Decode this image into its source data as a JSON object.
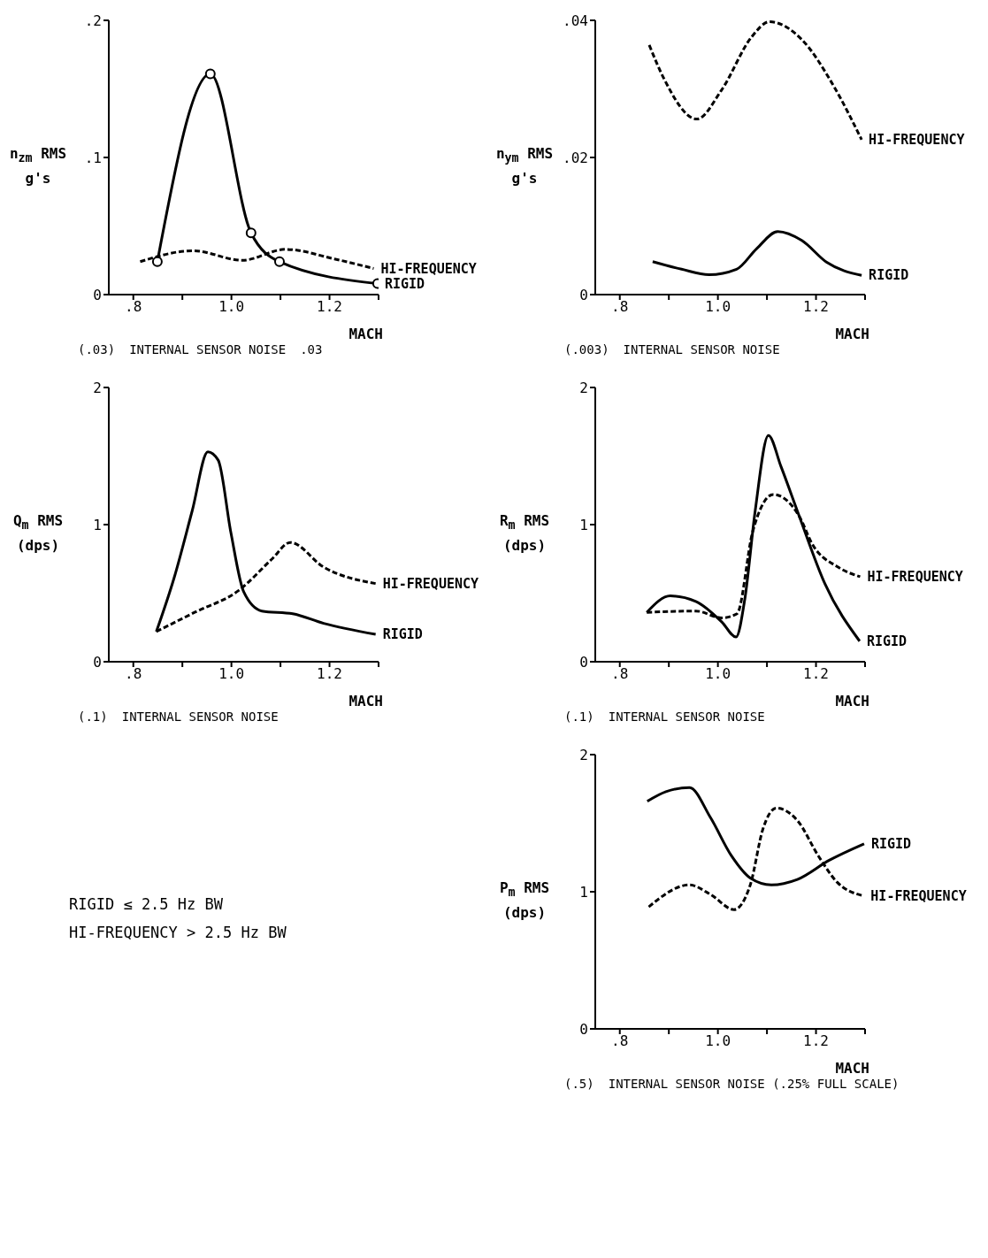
{
  "chart_data": [
    {
      "type": "line",
      "xlabel": "MACH",
      "ylabel": "n$_{zm}$ RMS g's",
      "xlim": [
        0.75,
        1.3
      ],
      "ylim": [
        0,
        0.2
      ],
      "xticks": [
        {
          "value": 0.8,
          "label": ".8"
        },
        {
          "value": 0.9,
          "label": null
        },
        {
          "value": 1.0,
          "label": "1.0"
        },
        {
          "value": 1.1,
          "label": null
        },
        {
          "value": 1.2,
          "label": "1.2"
        },
        {
          "value": 1.3,
          "label": null
        }
      ],
      "yticks": [
        0,
        {
          "value": 0.1,
          "label": ".1"
        },
        {
          "value": 0.2,
          "label": ".2"
        }
      ],
      "series": [
        {
          "name": "RIGID",
          "color": "#000000",
          "line_style": "solid",
          "marker": "circle",
          "x": [
            0.849,
            0.957,
            1.04,
            1.098,
            1.298
          ],
          "values": [
            0.024,
            0.161,
            0.045,
            0.024,
            0.008
          ]
        },
        {
          "name": "HI-FREQUENCY",
          "color": "#000000",
          "line_style": "dashed",
          "marker": "none",
          "x": [
            0.814,
            0.922,
            1.022,
            1.11,
            1.21,
            1.29
          ],
          "values": [
            0.024,
            0.032,
            0.025,
            0.033,
            0.026,
            0.019
          ]
        }
      ],
      "annotations": [
        "(.03)",
        "INTERNAL SENSOR NOISE",
        ".03"
      ]
    },
    {
      "type": "line",
      "xlabel": "MACH",
      "ylabel": "n$_{ym}$ RMS g's",
      "xlim": [
        0.75,
        1.3
      ],
      "ylim": [
        0,
        0.04
      ],
      "xticks": [
        {
          "value": 0.8,
          "label": ".8"
        },
        {
          "value": 0.9,
          "label": null
        },
        {
          "value": 1.0,
          "label": "1.0"
        },
        {
          "value": 1.1,
          "label": null
        },
        {
          "value": 1.2,
          "label": "1.2"
        },
        {
          "value": 1.3,
          "label": null
        }
      ],
      "yticks": [
        0,
        {
          "value": 0.02,
          "label": ".02"
        },
        {
          "value": 0.04,
          "label": ".04"
        }
      ],
      "series": [
        {
          "name": "HI-FREQUENCY",
          "color": "#000000",
          "line_style": "dashed",
          "marker": "none",
          "x": [
            0.86,
            0.89,
            0.957,
            1.008,
            1.069,
            1.105,
            1.171,
            1.237,
            1.293
          ],
          "values": [
            0.0364,
            0.0315,
            0.0256,
            0.0299,
            0.0376,
            0.0398,
            0.0372,
            0.0303,
            0.0226
          ]
        },
        {
          "name": "RIGID",
          "color": "#000000",
          "line_style": "solid",
          "marker": "none",
          "x": [
            0.867,
            0.926,
            0.982,
            1.038,
            1.079,
            1.122,
            1.171,
            1.222,
            1.293
          ],
          "values": [
            0.0048,
            0.0037,
            0.0029,
            0.0037,
            0.0067,
            0.0092,
            0.0079,
            0.0047,
            0.0028
          ]
        }
      ],
      "annotations": [
        "(.003)",
        "INTERNAL SENSOR NOISE"
      ]
    },
    {
      "type": "line",
      "xlabel": "MACH",
      "ylabel": "Q$_{m}$ RMS (dps)",
      "xlim": [
        0.75,
        1.3
      ],
      "ylim": [
        0,
        2
      ],
      "xticks": [
        {
          "value": 0.8,
          "label": ".8"
        },
        {
          "value": 0.9,
          "label": null
        },
        {
          "value": 1.0,
          "label": "1.0"
        },
        {
          "value": 1.1,
          "label": null
        },
        {
          "value": 1.2,
          "label": "1.2"
        },
        {
          "value": 1.3,
          "label": null
        }
      ],
      "yticks": [
        0,
        1,
        2
      ],
      "series": [
        {
          "name": "RIGID",
          "color": "#000000",
          "line_style": "solid",
          "marker": "none",
          "x": [
            0.847,
            0.883,
            0.92,
            0.952,
            0.973,
            0.999,
            1.025,
            1.062,
            1.125,
            1.188,
            1.294
          ],
          "values": [
            0.22,
            0.61,
            1.1,
            1.53,
            1.47,
            0.94,
            0.51,
            0.37,
            0.35,
            0.28,
            0.2
          ]
        },
        {
          "name": "HI-FREQUENCY",
          "color": "#000000",
          "line_style": "dashed",
          "marker": "none",
          "x": [
            0.847,
            0.925,
            1.015,
            1.083,
            1.12,
            1.188,
            1.294
          ],
          "values": [
            0.22,
            0.36,
            0.52,
            0.75,
            0.87,
            0.69,
            0.57
          ]
        }
      ],
      "annotations": [
        "(.1)",
        "INTERNAL SENSOR NOISE"
      ]
    },
    {
      "type": "line",
      "xlabel": "MACH",
      "ylabel": "R$_{m}$ RMS (dps)",
      "xlim": [
        0.75,
        1.3
      ],
      "ylim": [
        0,
        2
      ],
      "xticks": [
        {
          "value": 0.8,
          "label": ".8"
        },
        {
          "value": 0.9,
          "label": null
        },
        {
          "value": 1.0,
          "label": "1.0"
        },
        {
          "value": 1.1,
          "label": null
        },
        {
          "value": 1.2,
          "label": "1.2"
        },
        {
          "value": 1.3,
          "label": null
        }
      ],
      "yticks": [
        0,
        1,
        2
      ],
      "series": [
        {
          "name": "RIGID",
          "color": "#000000",
          "line_style": "solid",
          "marker": "none",
          "x": [
            0.855,
            0.903,
            0.955,
            1.008,
            1.037,
            1.055,
            1.076,
            1.103,
            1.129,
            1.166,
            1.218,
            1.289
          ],
          "values": [
            0.36,
            0.48,
            0.44,
            0.29,
            0.18,
            0.46,
            1.1,
            1.65,
            1.42,
            1.06,
            0.57,
            0.15
          ]
        },
        {
          "name": "HI-FREQUENCY",
          "color": "#000000",
          "line_style": "dashed",
          "marker": "none",
          "x": [
            0.855,
            0.955,
            1.008,
            1.039,
            1.071,
            1.113,
            1.166,
            1.192,
            1.245,
            1.29
          ],
          "values": [
            0.36,
            0.37,
            0.32,
            0.35,
            0.95,
            1.22,
            1.06,
            0.86,
            0.69,
            0.62
          ]
        }
      ],
      "annotations": [
        "(.1)",
        "INTERNAL SENSOR NOISE"
      ]
    },
    {
      "type": "other",
      "annotations": [
        "RIGID ≤ 2.5 Hz BW",
        "HI-FREQUENCY > 2.5 Hz BW"
      ]
    },
    {
      "type": "line",
      "xlabel": "MACH",
      "ylabel": "P$_{m}$ RMS (dps)",
      "xlim": [
        0.75,
        1.3
      ],
      "ylim": [
        0,
        2
      ],
      "xticks": [
        {
          "value": 0.8,
          "label": ".8"
        },
        {
          "value": 0.9,
          "label": null
        },
        {
          "value": 1.0,
          "label": "1.0"
        },
        {
          "value": 1.1,
          "label": null
        },
        {
          "value": 1.2,
          "label": "1.2"
        },
        {
          "value": 1.3,
          "label": null
        }
      ],
      "yticks": [
        0,
        1,
        2
      ],
      "series": [
        {
          "name": "RIGID",
          "color": "#000000",
          "line_style": "solid",
          "marker": "none",
          "x": [
            0.856,
            0.894,
            0.942,
            0.985,
            1.028,
            1.066,
            1.109,
            1.162,
            1.227,
            1.298
          ],
          "values": [
            1.66,
            1.73,
            1.76,
            1.54,
            1.26,
            1.1,
            1.05,
            1.09,
            1.23,
            1.35
          ]
        },
        {
          "name": "HI-FREQUENCY",
          "color": "#000000",
          "line_style": "dashed",
          "marker": "none",
          "x": [
            0.859,
            0.942,
            0.985,
            1.033,
            1.066,
            1.092,
            1.119,
            1.162,
            1.205,
            1.243,
            1.297
          ],
          "values": [
            0.89,
            1.05,
            0.98,
            0.87,
            1.05,
            1.46,
            1.61,
            1.52,
            1.26,
            1.07,
            0.97
          ]
        }
      ],
      "annotations": [
        "(.5)",
        "INTERNAL SENSOR NOISE (.25% FULL SCALE)"
      ]
    }
  ]
}
